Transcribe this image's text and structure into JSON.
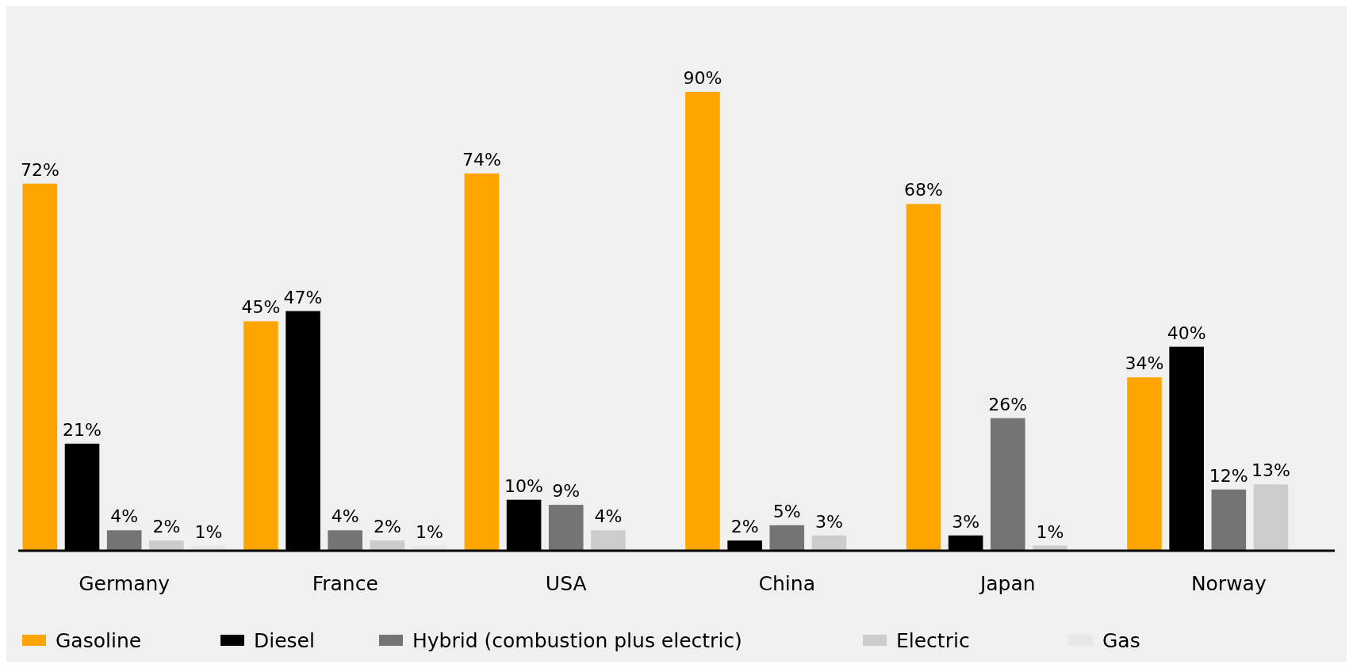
{
  "chart_data": {
    "type": "bar",
    "categories": [
      "Germany",
      "France",
      "USA",
      "China",
      "Japan",
      "Norway"
    ],
    "series": [
      {
        "name": "Gasoline",
        "color": "#ffa500",
        "values": [
          72,
          45,
          74,
          90,
          68,
          34
        ],
        "value_labels": [
          "72%",
          "45%",
          "74%",
          "90%",
          "68%",
          "34%"
        ]
      },
      {
        "name": "Diesel",
        "color": "#000000",
        "values": [
          21,
          47,
          10,
          2,
          3,
          40
        ],
        "value_labels": [
          "21%",
          "47%",
          "10%",
          "2%",
          "3%",
          "40%"
        ]
      },
      {
        "name": "Hybrid (combustion plus electric)",
        "color": "#747474",
        "values": [
          4,
          4,
          9,
          5,
          26,
          12
        ],
        "value_labels": [
          "4%",
          "4%",
          "9%",
          "5%",
          "26%",
          "12%"
        ]
      },
      {
        "name": "Electric",
        "color": "#cccccc",
        "values": [
          2,
          2,
          4,
          3,
          1,
          13
        ],
        "value_labels": [
          "2%",
          "2%",
          "4%",
          "3%",
          "1%",
          "13%"
        ]
      },
      {
        "name": "Gas",
        "color": "#e8e8e8",
        "values": [
          1,
          1,
          null,
          null,
          null,
          null
        ],
        "value_labels": [
          "1%",
          "1%",
          null,
          null,
          null,
          null
        ]
      }
    ],
    "legend": "bottom"
  }
}
